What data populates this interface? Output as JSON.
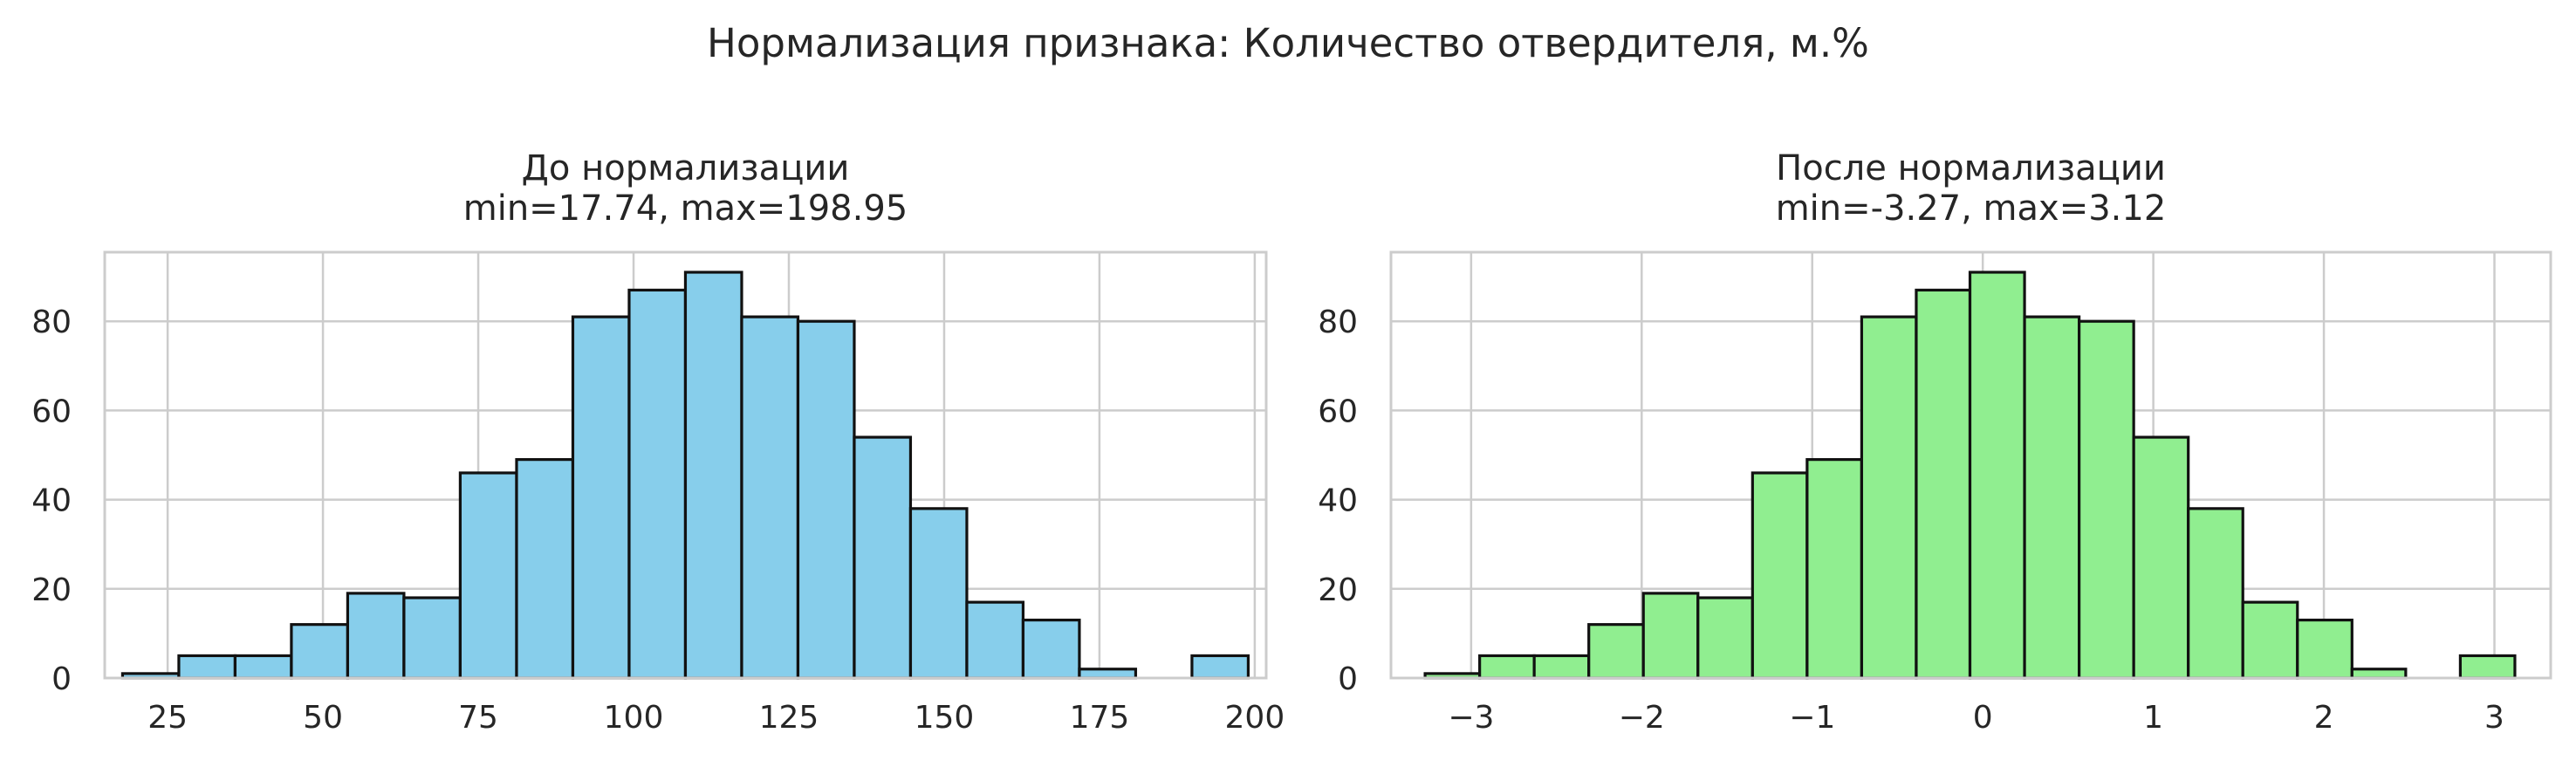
{
  "suptitle": "Нормализация признака: Количество отвердителя, м.%",
  "colors": {
    "grid": "#cccccc",
    "spine": "#cccccc",
    "edge": "#111111",
    "left_fill": "#87ceeb",
    "right_fill": "#90ee90"
  },
  "chart_data": [
    {
      "type": "bar",
      "title": "До нормализации",
      "subtitle": "min=17.74, max=198.95",
      "xlabel": "",
      "ylabel": "",
      "bin_edges": [
        17.74,
        26.8,
        35.86,
        44.92,
        53.98,
        63.04,
        72.1,
        81.17,
        90.23,
        99.29,
        108.35,
        117.41,
        126.47,
        135.53,
        144.59,
        153.65,
        162.71,
        171.77,
        180.83,
        189.89,
        198.95
      ],
      "values": [
        1,
        5,
        5,
        12,
        19,
        18,
        46,
        49,
        81,
        87,
        91,
        81,
        80,
        54,
        38,
        17,
        13,
        2,
        0,
        5
      ],
      "xlim": [
        14.87,
        201.84
      ],
      "ylim": [
        0,
        95.5
      ],
      "xticks": [
        25,
        50,
        75,
        100,
        125,
        150,
        175,
        200
      ],
      "xtick_labels": [
        "25",
        "50",
        "75",
        "100",
        "125",
        "150",
        "175",
        "200"
      ],
      "yticks": [
        0,
        20,
        40,
        60,
        80
      ],
      "ytick_labels": [
        "0",
        "20",
        "40",
        "60",
        "80"
      ],
      "grid": true,
      "color": "#87ceeb"
    },
    {
      "type": "bar",
      "title": "После нормализации",
      "subtitle": "min=-3.27, max=3.12",
      "xlabel": "",
      "ylabel": "",
      "bin_edges": [
        -3.27,
        -2.95,
        -2.63,
        -2.31,
        -1.99,
        -1.67,
        -1.35,
        -1.03,
        -0.71,
        -0.39,
        -0.075,
        0.245,
        0.565,
        0.885,
        1.205,
        1.525,
        1.845,
        2.165,
        2.48,
        2.8,
        3.12
      ],
      "values": [
        1,
        5,
        5,
        12,
        19,
        18,
        46,
        49,
        81,
        87,
        91,
        81,
        80,
        54,
        38,
        17,
        13,
        2,
        0,
        5
      ],
      "xlim": [
        -3.47,
        3.33
      ],
      "ylim": [
        0,
        95.5
      ],
      "xticks": [
        -3,
        -2,
        -1,
        0,
        1,
        2,
        3
      ],
      "xtick_labels": [
        "−3",
        "−2",
        "−1",
        "0",
        "1",
        "2",
        "3"
      ],
      "yticks": [
        0,
        20,
        40,
        60,
        80
      ],
      "ytick_labels": [
        "0",
        "20",
        "40",
        "60",
        "80"
      ],
      "grid": true,
      "color": "#90ee90"
    }
  ]
}
